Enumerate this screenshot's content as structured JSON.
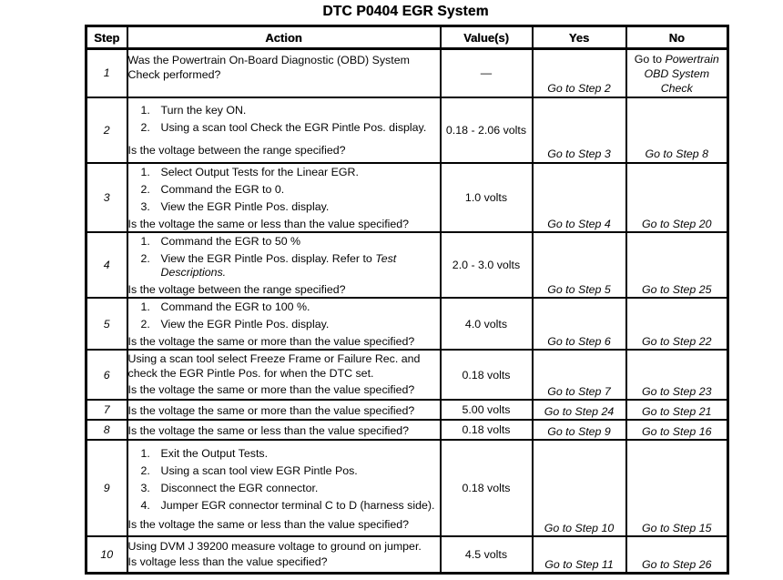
{
  "title": "DTC P0404 EGR System",
  "table": {
    "headers": [
      "Step",
      "Action",
      "Value(s)",
      "Yes",
      "No"
    ],
    "rows": [
      {
        "step": "1",
        "pre": "Was the Powertrain On-Board Diagnostic (OBD) System Check performed?",
        "items": [],
        "question": "",
        "value": "—",
        "yes": "Go to Step 2",
        "no": "Go to *Powertrain OBD System Check*"
      },
      {
        "step": "2",
        "pre": "",
        "items": [
          "Turn the key ON.",
          "Using a scan tool Check the EGR Pintle Pos. display."
        ],
        "question": "Is the voltage between the range specified?",
        "value": "0.18 - 2.06 volts",
        "yes": "Go to Step 3",
        "no": "Go to Step 8"
      },
      {
        "step": "3",
        "pre": "",
        "items": [
          "Select Output Tests for the Linear EGR.",
          "Command the EGR to 0.",
          "View the EGR Pintle Pos. display."
        ],
        "question": "Is the voltage the same or less than the value specified?",
        "value": "1.0 volts",
        "yes": "Go to Step 4",
        "no": "Go to Step 20"
      },
      {
        "step": "4",
        "pre": "",
        "items": [
          "Command the EGR to 50 %",
          "View the EGR Pintle Pos. display. Refer to *Test Descriptions.*"
        ],
        "question": "Is the voltage between the range specified?",
        "value": "2.0 - 3.0 volts",
        "yes": "Go to Step 5",
        "no": "Go to Step 25"
      },
      {
        "step": "5",
        "pre": "",
        "items": [
          "Command the EGR to 100 %.",
          "View the EGR Pintle Pos. display."
        ],
        "question": "Is the voltage the same or more than the value specified?",
        "value": "4.0 volts",
        "yes": "Go to Step 6",
        "no": "Go to Step 22"
      },
      {
        "step": "6",
        "pre": "Using a scan tool select Freeze Frame or Failure Rec. and check the EGR Pintle Pos. for when the DTC set.",
        "items": [],
        "question": "Is the voltage the same or more than the value specified?",
        "value": "0.18 volts",
        "yes": "Go to Step 7",
        "no": "Go to Step 23"
      },
      {
        "step": "7",
        "pre": "",
        "items": [],
        "question": "Is the voltage the same or more than the value specified?",
        "value": "5.00 volts",
        "yes": "Go to Step 24",
        "no": "Go to Step 21"
      },
      {
        "step": "8",
        "pre": "",
        "items": [],
        "question": "Is the voltage the same or less than the value specified?",
        "value": "0.18 volts",
        "yes": "Go to Step 9",
        "no": "Go to Step 16"
      },
      {
        "step": "9",
        "pre": "",
        "items": [
          "Exit the Output Tests.",
          "Using a scan tool view EGR Pintle Pos.",
          "Disconnect the EGR connector.",
          "Jumper EGR connector terminal C to D (harness side)."
        ],
        "question": "Is the voltage the same or less than the value specified?",
        "value": "0.18 volts",
        "yes": "Go to Step 10",
        "no": "Go to Step 15"
      },
      {
        "step": "10",
        "pre": "Using DVM J 39200 measure voltage to ground on jumper.",
        "items": [],
        "question": "Is voltage less than the value specified?",
        "value": "4.5 volts",
        "yes": "Go to Step 11",
        "no": "Go to Step 26"
      }
    ]
  }
}
